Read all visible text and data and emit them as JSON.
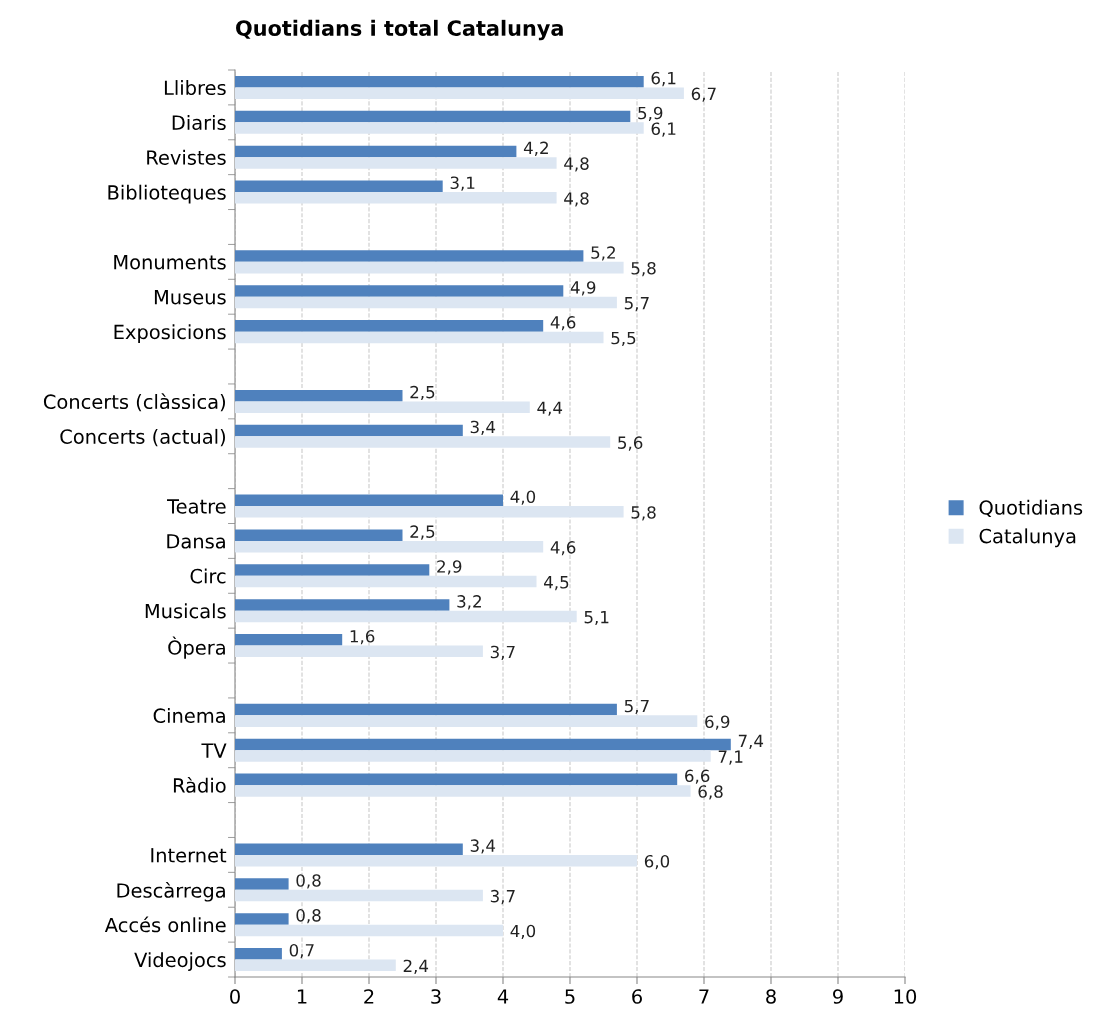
{
  "chart_data": {
    "type": "bar",
    "orientation": "horizontal",
    "title": "Quotidians i total Catalunya",
    "categories": [
      "Llibres",
      "Diaris",
      "Revistes",
      "Biblioteques",
      null,
      "Monuments",
      "Museus",
      "Exposicions",
      null,
      "Concerts (clàssica)",
      "Concerts (actual)",
      null,
      "Teatre",
      "Dansa",
      "Circ",
      "Musicals",
      "Òpera",
      null,
      "Cinema",
      "TV",
      "Ràdio",
      null,
      "Internet",
      "Descàrrega",
      "Accés online",
      "Videojocs"
    ],
    "series": [
      {
        "name": "Quotidians",
        "color": "#4f81bd",
        "values": [
          6.1,
          5.9,
          4.2,
          3.1,
          null,
          5.2,
          4.9,
          4.6,
          null,
          2.5,
          3.4,
          null,
          4.0,
          2.5,
          2.9,
          3.2,
          1.6,
          null,
          5.7,
          7.4,
          6.6,
          null,
          3.4,
          0.8,
          0.8,
          0.7
        ],
        "value_labels": [
          "6,1",
          "5,9",
          "4,2",
          "3,1",
          null,
          "5,2",
          "4,9",
          "4,6",
          null,
          "2,5",
          "3,4",
          null,
          "4,0",
          "2,5",
          "2,9",
          "3,2",
          "1,6",
          null,
          "5,7",
          "7,4",
          "6,6",
          null,
          "3,4",
          "0,8",
          "0,8",
          "0,7"
        ]
      },
      {
        "name": "Catalunya",
        "color": "#dce6f2",
        "values": [
          6.7,
          6.1,
          4.8,
          4.8,
          null,
          5.8,
          5.7,
          5.5,
          null,
          4.4,
          5.6,
          null,
          5.8,
          4.6,
          4.5,
          5.1,
          3.7,
          null,
          6.9,
          7.1,
          6.8,
          null,
          6.0,
          3.7,
          4.0,
          2.4
        ],
        "value_labels": [
          "6,7",
          "6,1",
          "4,8",
          "4,8",
          null,
          "5,8",
          "5,7",
          "5,5",
          null,
          "4,4",
          "5,6",
          null,
          "5,8",
          "4,6",
          "4,5",
          "5,1",
          "3,7",
          null,
          "6,9",
          "7,1",
          "6,8",
          null,
          "6,0",
          "3,7",
          "4,0",
          "2,4"
        ]
      }
    ],
    "xlim": [
      0,
      10
    ],
    "xticks": [
      0,
      1,
      2,
      3,
      4,
      5,
      6,
      7,
      8,
      9,
      10
    ],
    "grid": "x",
    "legend": "right"
  }
}
